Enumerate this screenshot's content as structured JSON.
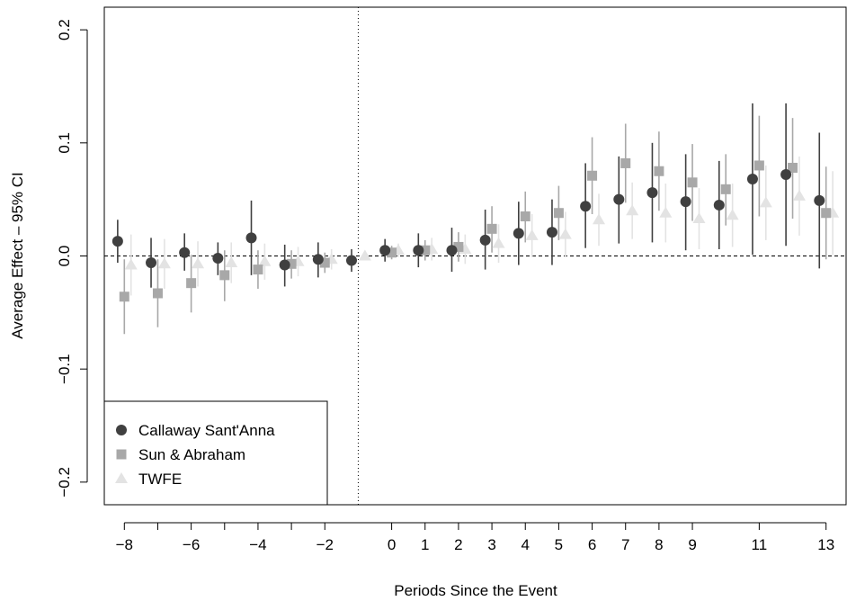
{
  "chart_data": {
    "type": "scatter",
    "title": "",
    "xlabel": "Periods Since the Event",
    "ylabel": "Average Effect – 95% CI",
    "xlim": [
      -8.6,
      13.6
    ],
    "ylim": [
      -0.22,
      0.22
    ],
    "x_ticks": [
      {
        "value": -8,
        "label": "−8"
      },
      {
        "value": -7,
        "label": ""
      },
      {
        "value": -6,
        "label": "−6"
      },
      {
        "value": -5,
        "label": ""
      },
      {
        "value": -4,
        "label": "−4"
      },
      {
        "value": -3,
        "label": ""
      },
      {
        "value": -2,
        "label": "−2"
      },
      {
        "value": 0,
        "label": "0"
      },
      {
        "value": 1,
        "label": "1"
      },
      {
        "value": 2,
        "label": "2"
      },
      {
        "value": 3,
        "label": "3"
      },
      {
        "value": 4,
        "label": "4"
      },
      {
        "value": 5,
        "label": "5"
      },
      {
        "value": 6,
        "label": "6"
      },
      {
        "value": 7,
        "label": "7"
      },
      {
        "value": 8,
        "label": "8"
      },
      {
        "value": 9,
        "label": "9"
      },
      {
        "value": 11,
        "label": "11"
      },
      {
        "value": 13,
        "label": "13"
      }
    ],
    "y_ticks": [
      {
        "value": -0.2,
        "label": "−0.2"
      },
      {
        "value": -0.1,
        "label": "−0.1"
      },
      {
        "value": 0.0,
        "label": "0.0"
      },
      {
        "value": 0.1,
        "label": "0.1"
      },
      {
        "value": 0.2,
        "label": "0.2"
      }
    ],
    "reference_lines": {
      "horizontal_y": 0,
      "vertical_x": -1
    },
    "legend": {
      "position": "bottom-left"
    },
    "series": [
      {
        "name": "Callaway Sant'Anna",
        "marker": "circle",
        "color": "#404040",
        "offset": -0.2,
        "points": [
          {
            "x": -8,
            "y": 0.013,
            "lo": -0.006,
            "hi": 0.032
          },
          {
            "x": -7,
            "y": -0.006,
            "lo": -0.028,
            "hi": 0.016
          },
          {
            "x": -6,
            "y": 0.003,
            "lo": -0.013,
            "hi": 0.02
          },
          {
            "x": -5,
            "y": -0.002,
            "lo": -0.017,
            "hi": 0.012
          },
          {
            "x": -4,
            "y": 0.016,
            "lo": -0.017,
            "hi": 0.049
          },
          {
            "x": -3,
            "y": -0.008,
            "lo": -0.027,
            "hi": 0.01
          },
          {
            "x": -2,
            "y": -0.003,
            "lo": -0.019,
            "hi": 0.012
          },
          {
            "x": -1,
            "y": -0.004,
            "lo": -0.014,
            "hi": 0.006
          },
          {
            "x": 0,
            "y": 0.005,
            "lo": -0.005,
            "hi": 0.015
          },
          {
            "x": 1,
            "y": 0.005,
            "lo": -0.01,
            "hi": 0.02
          },
          {
            "x": 2,
            "y": 0.005,
            "lo": -0.014,
            "hi": 0.025
          },
          {
            "x": 3,
            "y": 0.014,
            "lo": -0.012,
            "hi": 0.041
          },
          {
            "x": 4,
            "y": 0.02,
            "lo": -0.008,
            "hi": 0.048
          },
          {
            "x": 5,
            "y": 0.021,
            "lo": -0.008,
            "hi": 0.05
          },
          {
            "x": 6,
            "y": 0.044,
            "lo": 0.007,
            "hi": 0.082
          },
          {
            "x": 7,
            "y": 0.05,
            "lo": 0.011,
            "hi": 0.088
          },
          {
            "x": 8,
            "y": 0.056,
            "lo": 0.012,
            "hi": 0.1
          },
          {
            "x": 9,
            "y": 0.048,
            "lo": 0.005,
            "hi": 0.09
          },
          {
            "x": 10,
            "y": 0.045,
            "lo": 0.006,
            "hi": 0.084
          },
          {
            "x": 11,
            "y": 0.068,
            "lo": 0.001,
            "hi": 0.135
          },
          {
            "x": 12,
            "y": 0.072,
            "lo": 0.009,
            "hi": 0.135
          },
          {
            "x": 13,
            "y": 0.049,
            "lo": -0.011,
            "hi": 0.109
          }
        ]
      },
      {
        "name": "Sun & Abraham",
        "marker": "square",
        "color": "#a8a8a8",
        "offset": 0.0,
        "points": [
          {
            "x": -8,
            "y": -0.036,
            "lo": -0.069,
            "hi": -0.003
          },
          {
            "x": -7,
            "y": -0.033,
            "lo": -0.063,
            "hi": -0.003
          },
          {
            "x": -6,
            "y": -0.024,
            "lo": -0.05,
            "hi": 0.001
          },
          {
            "x": -5,
            "y": -0.017,
            "lo": -0.04,
            "hi": 0.005
          },
          {
            "x": -4,
            "y": -0.012,
            "lo": -0.029,
            "hi": 0.005
          },
          {
            "x": -3,
            "y": -0.007,
            "lo": -0.02,
            "hi": 0.005
          },
          {
            "x": -2,
            "y": -0.006,
            "lo": -0.015,
            "hi": 0.003
          },
          {
            "x": 0,
            "y": 0.003,
            "lo": -0.003,
            "hi": 0.009
          },
          {
            "x": 1,
            "y": 0.005,
            "lo": -0.004,
            "hi": 0.014
          },
          {
            "x": 2,
            "y": 0.008,
            "lo": -0.005,
            "hi": 0.021
          },
          {
            "x": 3,
            "y": 0.024,
            "lo": 0.003,
            "hi": 0.044
          },
          {
            "x": 4,
            "y": 0.035,
            "lo": 0.012,
            "hi": 0.057
          },
          {
            "x": 5,
            "y": 0.038,
            "lo": 0.014,
            "hi": 0.062
          },
          {
            "x": 6,
            "y": 0.071,
            "lo": 0.037,
            "hi": 0.105
          },
          {
            "x": 7,
            "y": 0.082,
            "lo": 0.047,
            "hi": 0.117
          },
          {
            "x": 8,
            "y": 0.075,
            "lo": 0.04,
            "hi": 0.11
          },
          {
            "x": 9,
            "y": 0.065,
            "lo": 0.031,
            "hi": 0.099
          },
          {
            "x": 10,
            "y": 0.059,
            "lo": 0.027,
            "hi": 0.09
          },
          {
            "x": 11,
            "y": 0.08,
            "lo": 0.035,
            "hi": 0.124
          },
          {
            "x": 12,
            "y": 0.078,
            "lo": 0.033,
            "hi": 0.122
          },
          {
            "x": 13,
            "y": 0.038,
            "lo": -0.003,
            "hi": 0.079
          }
        ]
      },
      {
        "name": "TWFE",
        "marker": "triangle",
        "color": "#e3e3e3",
        "offset": 0.2,
        "points": [
          {
            "x": -8,
            "y": -0.008,
            "lo": -0.035,
            "hi": 0.019
          },
          {
            "x": -7,
            "y": -0.007,
            "lo": -0.029,
            "hi": 0.015
          },
          {
            "x": -6,
            "y": -0.007,
            "lo": -0.027,
            "hi": 0.013
          },
          {
            "x": -5,
            "y": -0.006,
            "lo": -0.024,
            "hi": 0.012
          },
          {
            "x": -4,
            "y": -0.005,
            "lo": -0.021,
            "hi": 0.011
          },
          {
            "x": -3,
            "y": -0.005,
            "lo": -0.018,
            "hi": 0.008
          },
          {
            "x": -2,
            "y": -0.003,
            "lo": -0.012,
            "hi": 0.006
          },
          {
            "x": -1,
            "y": 0.0,
            "lo": 0.0,
            "hi": 0.0
          },
          {
            "x": 0,
            "y": 0.005,
            "lo": -0.001,
            "hi": 0.011
          },
          {
            "x": 1,
            "y": 0.006,
            "lo": -0.004,
            "hi": 0.016
          },
          {
            "x": 2,
            "y": 0.006,
            "lo": -0.007,
            "hi": 0.019
          },
          {
            "x": 3,
            "y": 0.011,
            "lo": -0.006,
            "hi": 0.028
          },
          {
            "x": 4,
            "y": 0.018,
            "lo": -0.001,
            "hi": 0.037
          },
          {
            "x": 5,
            "y": 0.019,
            "lo": -0.001,
            "hi": 0.039
          },
          {
            "x": 6,
            "y": 0.032,
            "lo": 0.009,
            "hi": 0.055
          },
          {
            "x": 7,
            "y": 0.04,
            "lo": 0.015,
            "hi": 0.065
          },
          {
            "x": 8,
            "y": 0.038,
            "lo": 0.012,
            "hi": 0.064
          },
          {
            "x": 9,
            "y": 0.033,
            "lo": 0.006,
            "hi": 0.06
          },
          {
            "x": 10,
            "y": 0.036,
            "lo": 0.008,
            "hi": 0.064
          },
          {
            "x": 11,
            "y": 0.047,
            "lo": 0.014,
            "hi": 0.08
          },
          {
            "x": 12,
            "y": 0.053,
            "lo": 0.018,
            "hi": 0.088
          },
          {
            "x": 13,
            "y": 0.038,
            "lo": 0.001,
            "hi": 0.075
          }
        ]
      }
    ]
  }
}
